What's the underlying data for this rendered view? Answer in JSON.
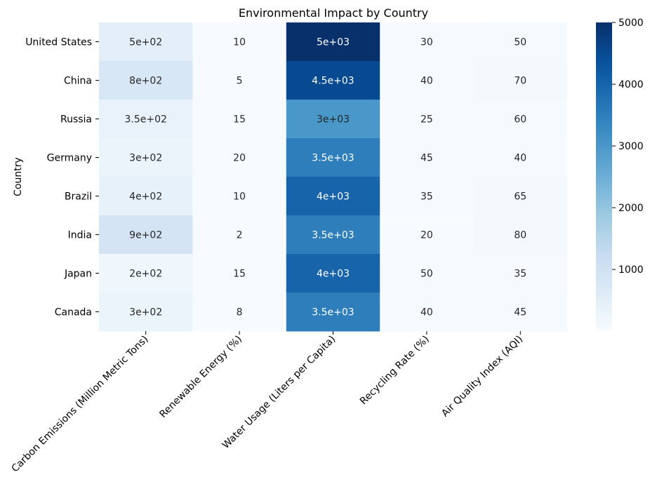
{
  "chart_data": {
    "type": "heatmap",
    "title": "Environmental Impact by Country",
    "ylabel": "Country",
    "xlabel": "",
    "rows": [
      "United States",
      "China",
      "Russia",
      "Germany",
      "Brazil",
      "India",
      "Japan",
      "Canada"
    ],
    "columns": [
      "Carbon Emissions (Million Metric Tons)",
      "Renewable Energy (%)",
      "Water Usage (Liters per Capita)",
      "Recycling Rate (%)",
      "Air Quality Index (AQI)"
    ],
    "values": [
      [
        500,
        10,
        5000,
        30,
        50
      ],
      [
        800,
        5,
        4500,
        40,
        70
      ],
      [
        350,
        15,
        3000,
        25,
        60
      ],
      [
        300,
        20,
        3500,
        45,
        40
      ],
      [
        400,
        10,
        4000,
        35,
        65
      ],
      [
        900,
        2,
        3500,
        20,
        80
      ],
      [
        200,
        15,
        4000,
        50,
        35
      ],
      [
        300,
        8,
        3500,
        40,
        45
      ]
    ],
    "cell_labels": [
      [
        "5e+02",
        "10",
        "5e+03",
        "30",
        "50"
      ],
      [
        "8e+02",
        "5",
        "4.5e+03",
        "40",
        "70"
      ],
      [
        "3.5e+02",
        "15",
        "3e+03",
        "25",
        "60"
      ],
      [
        "3e+02",
        "20",
        "3.5e+03",
        "45",
        "40"
      ],
      [
        "4e+02",
        "10",
        "4e+03",
        "35",
        "65"
      ],
      [
        "9e+02",
        "2",
        "3.5e+03",
        "20",
        "80"
      ],
      [
        "2e+02",
        "15",
        "4e+03",
        "50",
        "35"
      ],
      [
        "3e+02",
        "8",
        "3.5e+03",
        "40",
        "45"
      ]
    ],
    "colormap": "Blues",
    "colormap_stops": [
      "#f7fbff",
      "#deebf7",
      "#c6dbef",
      "#9ecae1",
      "#6baed6",
      "#4292c6",
      "#2171b5",
      "#08519c",
      "#08306b"
    ],
    "color_range": [
      2,
      5000
    ],
    "colorbar_ticks": [
      1000,
      2000,
      3000,
      4000,
      5000
    ],
    "colorbar_tick_labels": [
      "1000",
      "2000",
      "3000",
      "4000",
      "5000"
    ]
  }
}
